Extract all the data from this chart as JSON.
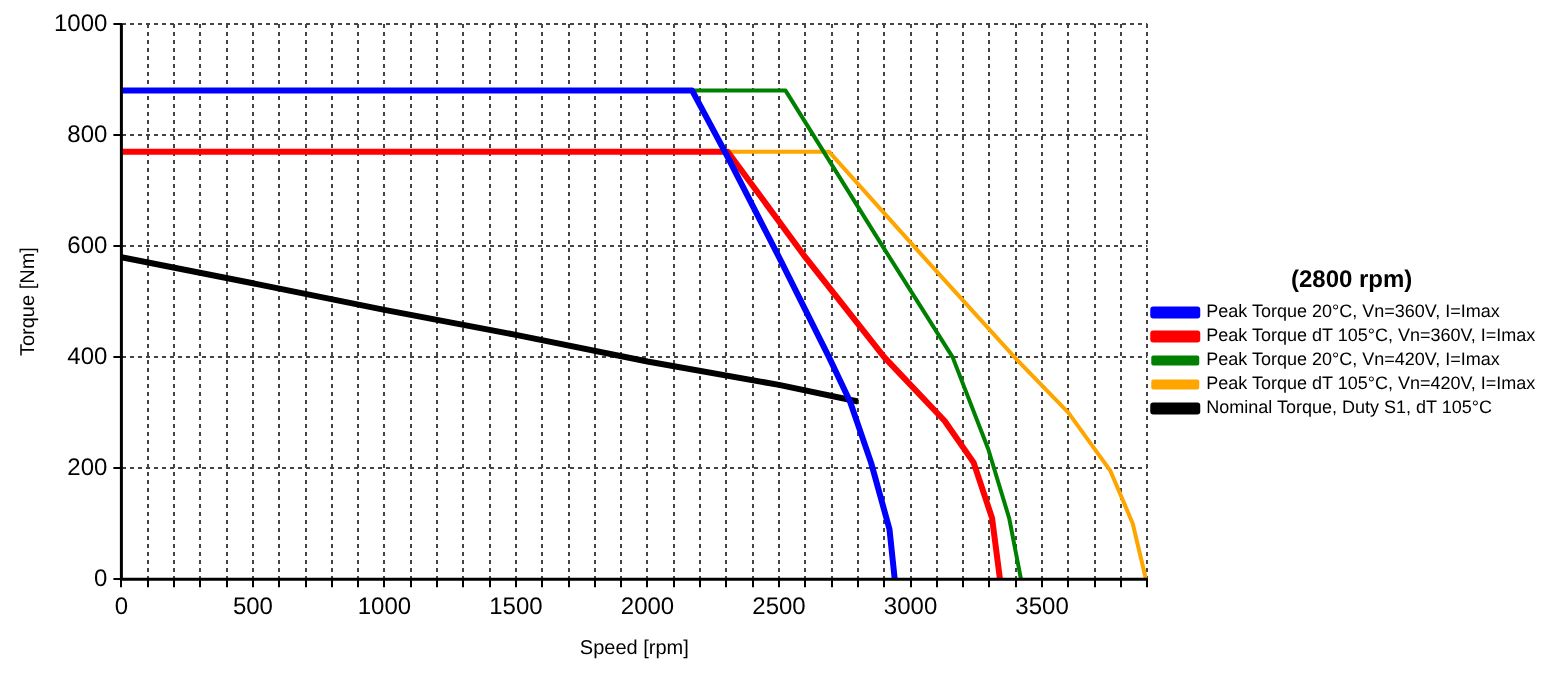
{
  "chart_data": {
    "type": "line",
    "xlabel": "Speed [rpm]",
    "ylabel": "Torque [Nm]",
    "legend_title": "(2800 rpm)",
    "legend": "right",
    "grid": true,
    "marker": "none",
    "line_style": "solid",
    "xlim": [
      0,
      3900
    ],
    "ylim": [
      0,
      1000
    ],
    "xticks": [
      0,
      {
        "value": 100,
        "label": null
      },
      {
        "value": 200,
        "label": null
      },
      {
        "value": 300,
        "label": null
      },
      {
        "value": 400,
        "label": null
      },
      500,
      {
        "value": 600,
        "label": null
      },
      {
        "value": 700,
        "label": null
      },
      {
        "value": 800,
        "label": null
      },
      {
        "value": 900,
        "label": null
      },
      1000,
      {
        "value": 1100,
        "label": null
      },
      {
        "value": 1200,
        "label": null
      },
      {
        "value": 1300,
        "label": null
      },
      {
        "value": 1400,
        "label": null
      },
      1500,
      {
        "value": 1600,
        "label": null
      },
      {
        "value": 1700,
        "label": null
      },
      {
        "value": 1800,
        "label": null
      },
      {
        "value": 1900,
        "label": null
      },
      2000,
      {
        "value": 2100,
        "label": null
      },
      {
        "value": 2200,
        "label": null
      },
      {
        "value": 2300,
        "label": null
      },
      {
        "value": 2400,
        "label": null
      },
      2500,
      {
        "value": 2600,
        "label": null
      },
      {
        "value": 2700,
        "label": null
      },
      {
        "value": 2800,
        "label": null
      },
      {
        "value": 2900,
        "label": null
      },
      3000,
      {
        "value": 3100,
        "label": null
      },
      {
        "value": 3200,
        "label": null
      },
      {
        "value": 3300,
        "label": null
      },
      {
        "value": 3400,
        "label": null
      },
      3500,
      {
        "value": 3600,
        "label": null
      },
      {
        "value": 3700,
        "label": null
      },
      {
        "value": 3800,
        "label": null
      },
      {
        "value": 3900,
        "label": null
      }
    ],
    "yticks": [
      0,
      200,
      400,
      600,
      800,
      1000
    ],
    "series": [
      {
        "name": "Peak Torque 20°C, Vn=360V, I=Imax",
        "color": "#0000ff",
        "x": [
          0,
          2170,
          2300,
          2500,
          2690,
          2770,
          2850,
          2920,
          2940
        ],
        "values": [
          880,
          880,
          765,
          580,
          400,
          320,
          210,
          90,
          0
        ]
      },
      {
        "name": "Peak Torque dT 105°C, Vn=360V, I=Imax",
        "color": "#ff0000",
        "x": [
          0,
          2305,
          2600,
          2900,
          3130,
          3240,
          3310,
          3340
        ],
        "values": [
          770,
          770,
          580,
          400,
          285,
          210,
          110,
          0
        ]
      },
      {
        "name": "Peak Torque 20°C, Vn=420V, I=Imax",
        "color": "#008000",
        "x": [
          0,
          2525,
          2900,
          3160,
          3295,
          3375,
          3420
        ],
        "values": [
          880,
          880,
          595,
          400,
          235,
          110,
          0
        ]
      },
      {
        "name": "Peak Torque dT 105°C, Vn=420V, I=Imax",
        "color": "#ffa500",
        "x": [
          0,
          2690,
          3050,
          3405,
          3600,
          3760,
          3845,
          3895
        ],
        "values": [
          770,
          770,
          580,
          395,
          300,
          195,
          100,
          0
        ]
      },
      {
        "name": "Nominal Torque, Duty S1, dT 105°C",
        "color": "#000000",
        "x": [
          0,
          500,
          1000,
          1500,
          2000,
          2500,
          2800
        ],
        "values": [
          580,
          533,
          485,
          440,
          392,
          350,
          320
        ]
      }
    ]
  }
}
